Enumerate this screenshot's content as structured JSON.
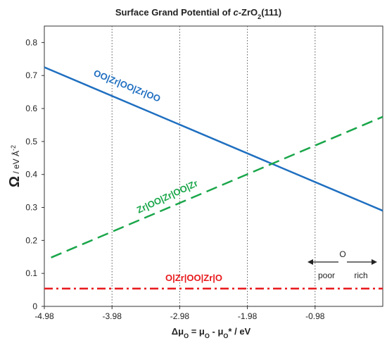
{
  "chart_data": {
    "type": "line",
    "title": {
      "prefix": "Surface Grand Potential of ",
      "italic": "c",
      "mid": "-ZrO",
      "sub": "2",
      "suffix": "(111)"
    },
    "ylabel": {
      "symbol": "Ω",
      "unit": " / eV Å",
      "sup": "-2"
    },
    "xlabel": {
      "delta": "Δμ",
      "sub1": "O",
      "eq": " = μ",
      "sub2": "O",
      "tail": " - μ",
      "sub3": "O",
      "star": "* / eV"
    },
    "xlim": [
      -4.98,
      0.02
    ],
    "ylim": [
      0,
      0.85
    ],
    "x_ticks": [
      -4.98,
      -3.98,
      -2.98,
      -1.98,
      -0.98
    ],
    "x_tick_labels": [
      "-4.98",
      "-3.98",
      "-2.98",
      "-1.98",
      "-0.98"
    ],
    "y_ticks": [
      0,
      0.1,
      0.2,
      0.3,
      0.4,
      0.5,
      0.6,
      0.7,
      0.8
    ],
    "y_tick_labels": [
      "0",
      "0.1",
      "0.2",
      "0.3",
      "0.4",
      "0.5",
      "0.6",
      "0.7",
      "0.8"
    ],
    "vertical_gridlines": [
      -3.98,
      -2.98,
      -1.98,
      -0.98
    ],
    "series": [
      {
        "name": "OO|Zr|OO|Zr|OO",
        "color": "#1f6fc0",
        "style": "solid",
        "x": [
          -4.98,
          0.02
        ],
        "y": [
          0.725,
          0.29
        ]
      },
      {
        "name": "Zr|OO|Zr|OO|Zr",
        "color": "#1aa64a",
        "style": "dashed",
        "x": [
          -4.88,
          0.02
        ],
        "y": [
          0.148,
          0.575
        ]
      },
      {
        "name": "O|Zr|OO|Zr|O",
        "color": "#e8191c",
        "style": "dashdot",
        "x": [
          -4.98,
          0.02
        ],
        "y": [
          0.054,
          0.054
        ]
      }
    ],
    "annotation": {
      "top": "O",
      "left": "poor",
      "right": "rich"
    }
  }
}
